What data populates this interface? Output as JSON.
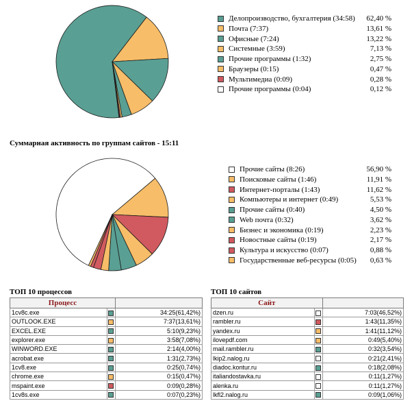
{
  "colors": {
    "teal": "#5a9f93",
    "orange": "#f7bd68",
    "red": "#d05a5f",
    "white": "#ffffff"
  },
  "chart_data": [
    {
      "type": "pie",
      "title": "",
      "slices": [
        {
          "label": "Делопроизводство, бухгалтерия (34:58)",
          "value": 62.4,
          "pct": "62,40 %",
          "color": "#5a9f93"
        },
        {
          "label": "Почта (7:37)",
          "value": 13.61,
          "pct": "13,61 %",
          "color": "#f7bd68"
        },
        {
          "label": "Офисные (7:24)",
          "value": 13.22,
          "pct": "13,22 %",
          "color": "#5a9f93"
        },
        {
          "label": "Системные (3:59)",
          "value": 7.13,
          "pct": "7,13 %",
          "color": "#f7bd68"
        },
        {
          "label": "Прочие программы (1:32)",
          "value": 2.75,
          "pct": "2,75 %",
          "color": "#5a9f93"
        },
        {
          "label": "Браузеры (0:15)",
          "value": 0.47,
          "pct": "0,47 %",
          "color": "#f7bd68"
        },
        {
          "label": "Мультимедиа (0:09)",
          "value": 0.28,
          "pct": "0,28 %",
          "color": "#d05a5f"
        },
        {
          "label": "Прочие программы (0:04)",
          "value": 0.12,
          "pct": "0,12 %",
          "color": "#ffffff"
        }
      ]
    },
    {
      "type": "pie",
      "title": "Суммарная активность по группам сайтов - 15:11",
      "slices": [
        {
          "label": "Прочие сайты (8:26)",
          "value": 56.9,
          "pct": "56,90 %",
          "color": "#ffffff"
        },
        {
          "label": "Поисковые сайты (1:46)",
          "value": 11.91,
          "pct": "11,91 %",
          "color": "#f7bd68"
        },
        {
          "label": "Интернет-порталы (1:43)",
          "value": 11.62,
          "pct": "11,62 %",
          "color": "#d05a5f"
        },
        {
          "label": "Компьютеры и интернет (0:49)",
          "value": 5.53,
          "pct": "5,53 %",
          "color": "#f7bd68"
        },
        {
          "label": "Прочие сайты (0:40)",
          "value": 4.5,
          "pct": "4,50 %",
          "color": "#5a9f93"
        },
        {
          "label": "Web почта (0:32)",
          "value": 3.62,
          "pct": "3,62 %",
          "color": "#5a9f93"
        },
        {
          "label": "Бизнес и экономика (0:19)",
          "value": 2.23,
          "pct": "2,23 %",
          "color": "#f7bd68"
        },
        {
          "label": "Новостные сайты (0:19)",
          "value": 2.17,
          "pct": "2,17 %",
          "color": "#d05a5f"
        },
        {
          "label": "Культура и искусство (0:07)",
          "value": 0.88,
          "pct": "0,88 %",
          "color": "#d05a5f"
        },
        {
          "label": "Государственные веб-ресурсы (0:05)",
          "value": 0.63,
          "pct": "0,63 %",
          "color": "#f7bd68"
        }
      ]
    },
    {
      "type": "table",
      "title": "ТОП 10 процессов",
      "header": "Процесс",
      "rows": [
        {
          "name": "1cv8c.exe",
          "color": "#5a9f93",
          "value": "34:25(61,42%)"
        },
        {
          "name": "OUTLOOK.EXE",
          "color": "#f7bd68",
          "value": "7:37(13,61%)"
        },
        {
          "name": "EXCEL.EXE",
          "color": "#5a9f93",
          "value": "5:10(9,23%)"
        },
        {
          "name": "explorer.exe",
          "color": "#f7bd68",
          "value": "3:58(7,08%)"
        },
        {
          "name": "WINWORD.EXE",
          "color": "#5a9f93",
          "value": "2:14(4,00%)"
        },
        {
          "name": "acrobat.exe",
          "color": "#5a9f93",
          "value": "1:31(2,73%)"
        },
        {
          "name": "1cv8.exe",
          "color": "#5a9f93",
          "value": "0:25(0,74%)"
        },
        {
          "name": "chrome.exe",
          "color": "#f7bd68",
          "value": "0:15(0,47%)"
        },
        {
          "name": "mspaint.exe",
          "color": "#d05a5f",
          "value": "0:09(0,28%)"
        },
        {
          "name": "1cv8s.exe",
          "color": "#5a9f93",
          "value": "0:07(0,23%)"
        }
      ]
    },
    {
      "type": "table",
      "title": "ТОП 10 сайтов",
      "header": "Сайт",
      "rows": [
        {
          "name": "dzen.ru",
          "color": "#ffffff",
          "value": "7:03(46,52%)"
        },
        {
          "name": "rambler.ru",
          "color": "#d05a5f",
          "value": "1:43(11,35%)"
        },
        {
          "name": "yandex.ru",
          "color": "#f7bd68",
          "value": "1:41(11,12%)"
        },
        {
          "name": "ilovepdf.com",
          "color": "#f7bd68",
          "value": "0:49(5,40%)"
        },
        {
          "name": "mail.rambler.ru",
          "color": "#5a9f93",
          "value": "0:32(3,54%)"
        },
        {
          "name": "lkip2.nalog.ru",
          "color": "#ffffff",
          "value": "0:21(2,41%)"
        },
        {
          "name": "diadoc.kontur.ru",
          "color": "#5a9f93",
          "value": "0:18(2,08%)"
        },
        {
          "name": "italiandostavka.ru",
          "color": "#ffffff",
          "value": "0:11(1,27%)"
        },
        {
          "name": "alenka.ru",
          "color": "#ffffff",
          "value": "0:11(1,27%)"
        },
        {
          "name": "lkfl2.nalog.ru",
          "color": "#5a9f93",
          "value": "0:09(1,06%)"
        }
      ]
    }
  ]
}
